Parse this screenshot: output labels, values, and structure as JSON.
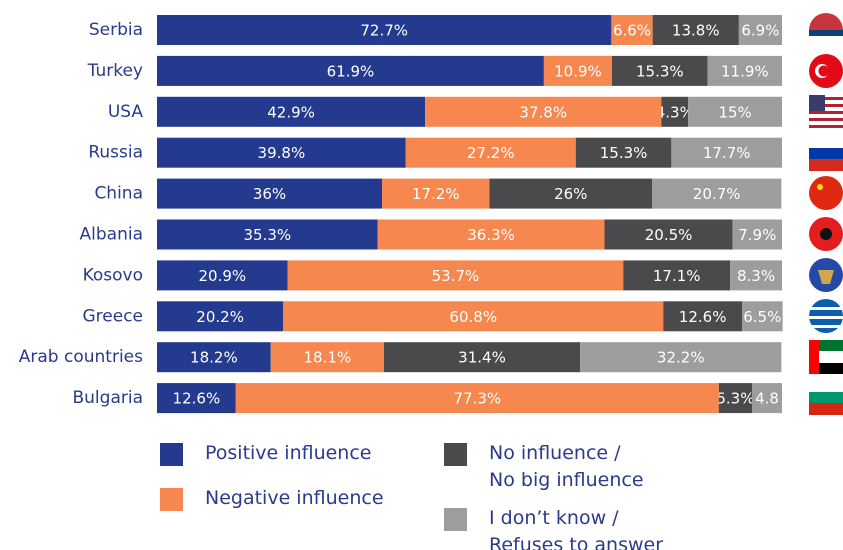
{
  "chart_data": {
    "type": "stacked-bar-horizontal",
    "categories": [
      "Serbia",
      "Turkey",
      "USA",
      "Russia",
      "China",
      "Albania",
      "Kosovo",
      "Greece",
      "Arab countries",
      "Bulgaria"
    ],
    "xlim": [
      0,
      100
    ],
    "series": [
      {
        "name": "Positive influence",
        "color": "#233a8f",
        "values": [
          72.7,
          61.9,
          42.9,
          39.8,
          36,
          35.3,
          20.9,
          20.2,
          18.2,
          12.6
        ],
        "value_labels": [
          "72.7%",
          "61.9%",
          "42.9%",
          "39.8%",
          "36%",
          "35.3%",
          "20.9%",
          "20.2%",
          "18.2%",
          "12.6%"
        ]
      },
      {
        "name": "Negative influence",
        "color": "#f5874f",
        "values": [
          6.6,
          10.9,
          37.8,
          27.2,
          17.2,
          36.3,
          53.7,
          60.8,
          18.1,
          77.3
        ],
        "value_labels": [
          "6.6%",
          "10.9%",
          "37.8%",
          "27.2%",
          "17.2%",
          "36.3%",
          "53.7%",
          "60.8%",
          "18.1%",
          "77.3%"
        ]
      },
      {
        "name": "No influence /\nNo big influence",
        "color": "#4a4a4c",
        "values": [
          13.8,
          15.3,
          4.3,
          15.3,
          26,
          20.5,
          17.1,
          12.6,
          31.4,
          5.3
        ],
        "value_labels": [
          "13.8%",
          "15.3%",
          "4.3%",
          "15.3%",
          "26%",
          "20.5%",
          "17.1%",
          "12.6%",
          "31.4%",
          "5.3%"
        ]
      },
      {
        "name": "I don’t know /\nRefuses to answer",
        "color": "#9d9d9f",
        "values": [
          6.9,
          11.9,
          15,
          17.7,
          20.7,
          7.9,
          8.3,
          6.5,
          32.2,
          4.8
        ],
        "value_labels": [
          "6.9%",
          "11.9%",
          "15%",
          "17.7%",
          "20.7%",
          "7.9%",
          "8.3%",
          "6.5%",
          "32.2%",
          "4.8"
        ]
      }
    ]
  }
}
